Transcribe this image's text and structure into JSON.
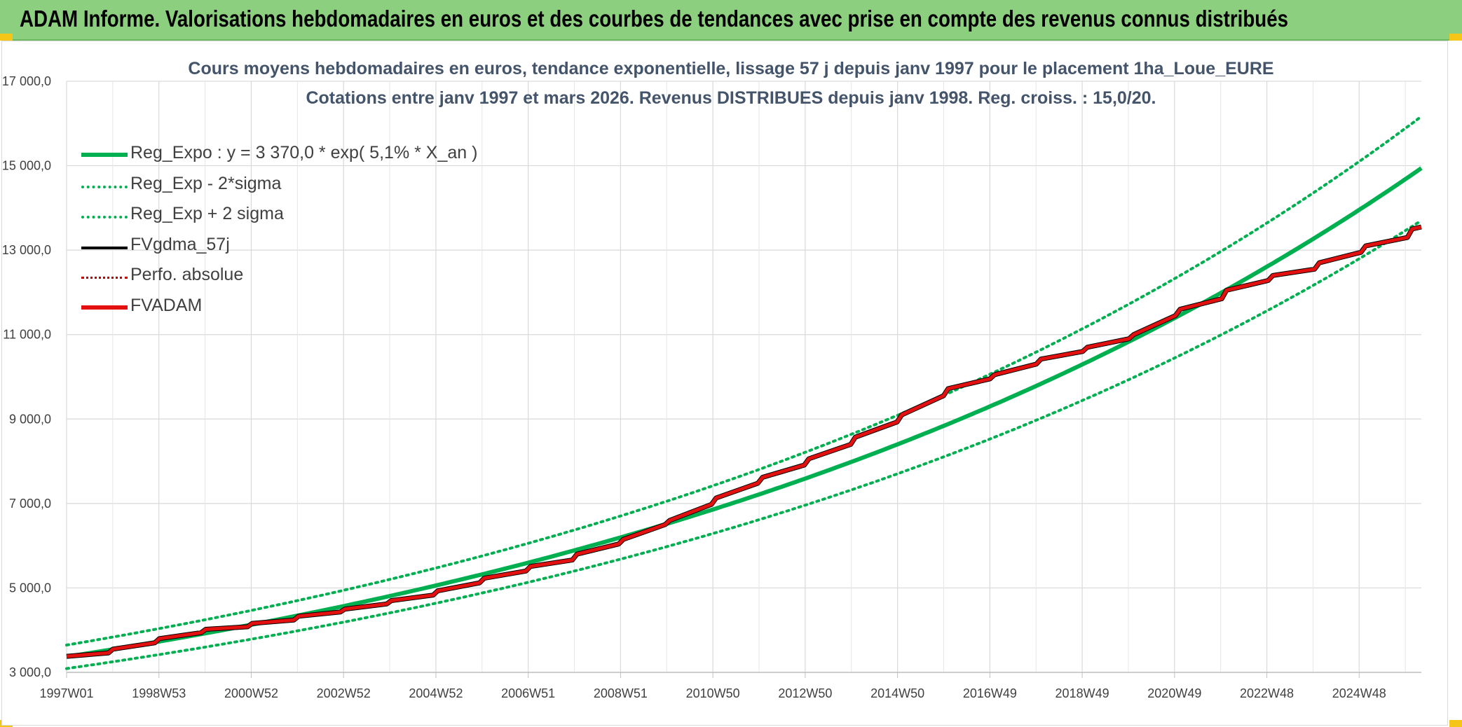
{
  "header": {
    "title": "ADAM Informe. Valorisations hebdomadaires en euros et des courbes de tendances avec prise en compte des revenus connus distribués"
  },
  "colors": {
    "header_bg": "#8ccf7e",
    "reg_expo": "#00b050",
    "fvgdma": "#000000",
    "perfo": "#c00000",
    "fvadam": "#e31010",
    "title": "#44546a"
  },
  "chart_data": {
    "type": "line",
    "title_line1": "Cours moyens hebdomadaires en euros, tendance exponentielle, lissage 57 j depuis janv 1997 pour le placement 1ha_Loue_EURE",
    "title_line2": "Cotations entre janv 1997 et mars 2026. Revenus DISTRIBUES depuis janv 1998. Reg. croiss. : 15,0/20.",
    "xlabel": "",
    "ylabel": "",
    "ylim": [
      3000,
      17000
    ],
    "y_ticks": [
      "17 000,0",
      "15 000,0",
      "13 000,0",
      "11 000,0",
      "9 000,0",
      "7 000,0",
      "5 000,0",
      "3 000,0"
    ],
    "y_tick_values": [
      17000,
      15000,
      13000,
      11000,
      9000,
      7000,
      5000,
      3000
    ],
    "x_range": [
      1997.0,
      2026.2
    ],
    "x_ticks": [
      "1997W01",
      "1998W53",
      "2000W52",
      "2002W52",
      "2004W52",
      "2006W51",
      "2008W51",
      "2010W50",
      "2012W50",
      "2014W50",
      "2016W49",
      "2018W49",
      "2020W49",
      "2022W48",
      "2024W48"
    ],
    "grid": true,
    "legend_position": "top-left",
    "regression": {
      "a": 3370.0,
      "rate": 0.051,
      "sigma_low_factor": 0.917,
      "sigma_high_factor": 1.082
    },
    "series": [
      {
        "name": "Reg_Expo : y = 3 370,0 * exp( 5,1% *  X_an )",
        "style": "solid-thick",
        "color": "#00b050"
      },
      {
        "name": "Reg_Exp - 2*sigma",
        "style": "dotted",
        "color": "#00b050"
      },
      {
        "name": "Reg_Exp + 2 sigma",
        "style": "dotted",
        "color": "#00b050"
      },
      {
        "name": "FVgdma_57j",
        "style": "solid",
        "color": "#000000"
      },
      {
        "name": "Perfo. absolue",
        "style": "dotted",
        "color": "#c00000"
      },
      {
        "name": "FVADAM",
        "style": "solid-thick",
        "color": "#e31010"
      }
    ],
    "fvadam": {
      "x": [
        1997.0,
        1997.9,
        1998.0,
        1998.9,
        1999.0,
        1999.9,
        2000.0,
        2000.9,
        2001.0,
        2001.9,
        2002.0,
        2002.9,
        2003.0,
        2003.9,
        2004.0,
        2004.9,
        2005.0,
        2005.9,
        2006.0,
        2006.9,
        2007.0,
        2007.9,
        2008.0,
        2008.9,
        2009.0,
        2009.9,
        2010.0,
        2010.9,
        2011.0,
        2011.9,
        2012.0,
        2012.9,
        2013.0,
        2013.9,
        2014.0,
        2014.9,
        2015.0,
        2015.9,
        2016.0,
        2016.9,
        2017.0,
        2017.9,
        2018.0,
        2018.9,
        2019.0,
        2019.9,
        2020.0,
        2020.9,
        2021.0,
        2021.9,
        2022.0,
        2022.9,
        2023.0,
        2023.9,
        2024.0,
        2024.9,
        2025.0,
        2025.9,
        2026.0,
        2026.2
      ],
      "y": [
        3380,
        3460,
        3550,
        3700,
        3800,
        3940,
        4020,
        4080,
        4160,
        4240,
        4330,
        4430,
        4500,
        4620,
        4700,
        4830,
        4930,
        5120,
        5230,
        5400,
        5510,
        5660,
        5800,
        6040,
        6150,
        6500,
        6600,
        6980,
        7130,
        7480,
        7620,
        7910,
        8060,
        8400,
        8570,
        8930,
        9100,
        9550,
        9720,
        9950,
        10050,
        10300,
        10420,
        10600,
        10700,
        10900,
        11000,
        11450,
        11600,
        11850,
        12050,
        12280,
        12400,
        12550,
        12700,
        12950,
        13100,
        13300,
        13500,
        13550
      ]
    }
  }
}
